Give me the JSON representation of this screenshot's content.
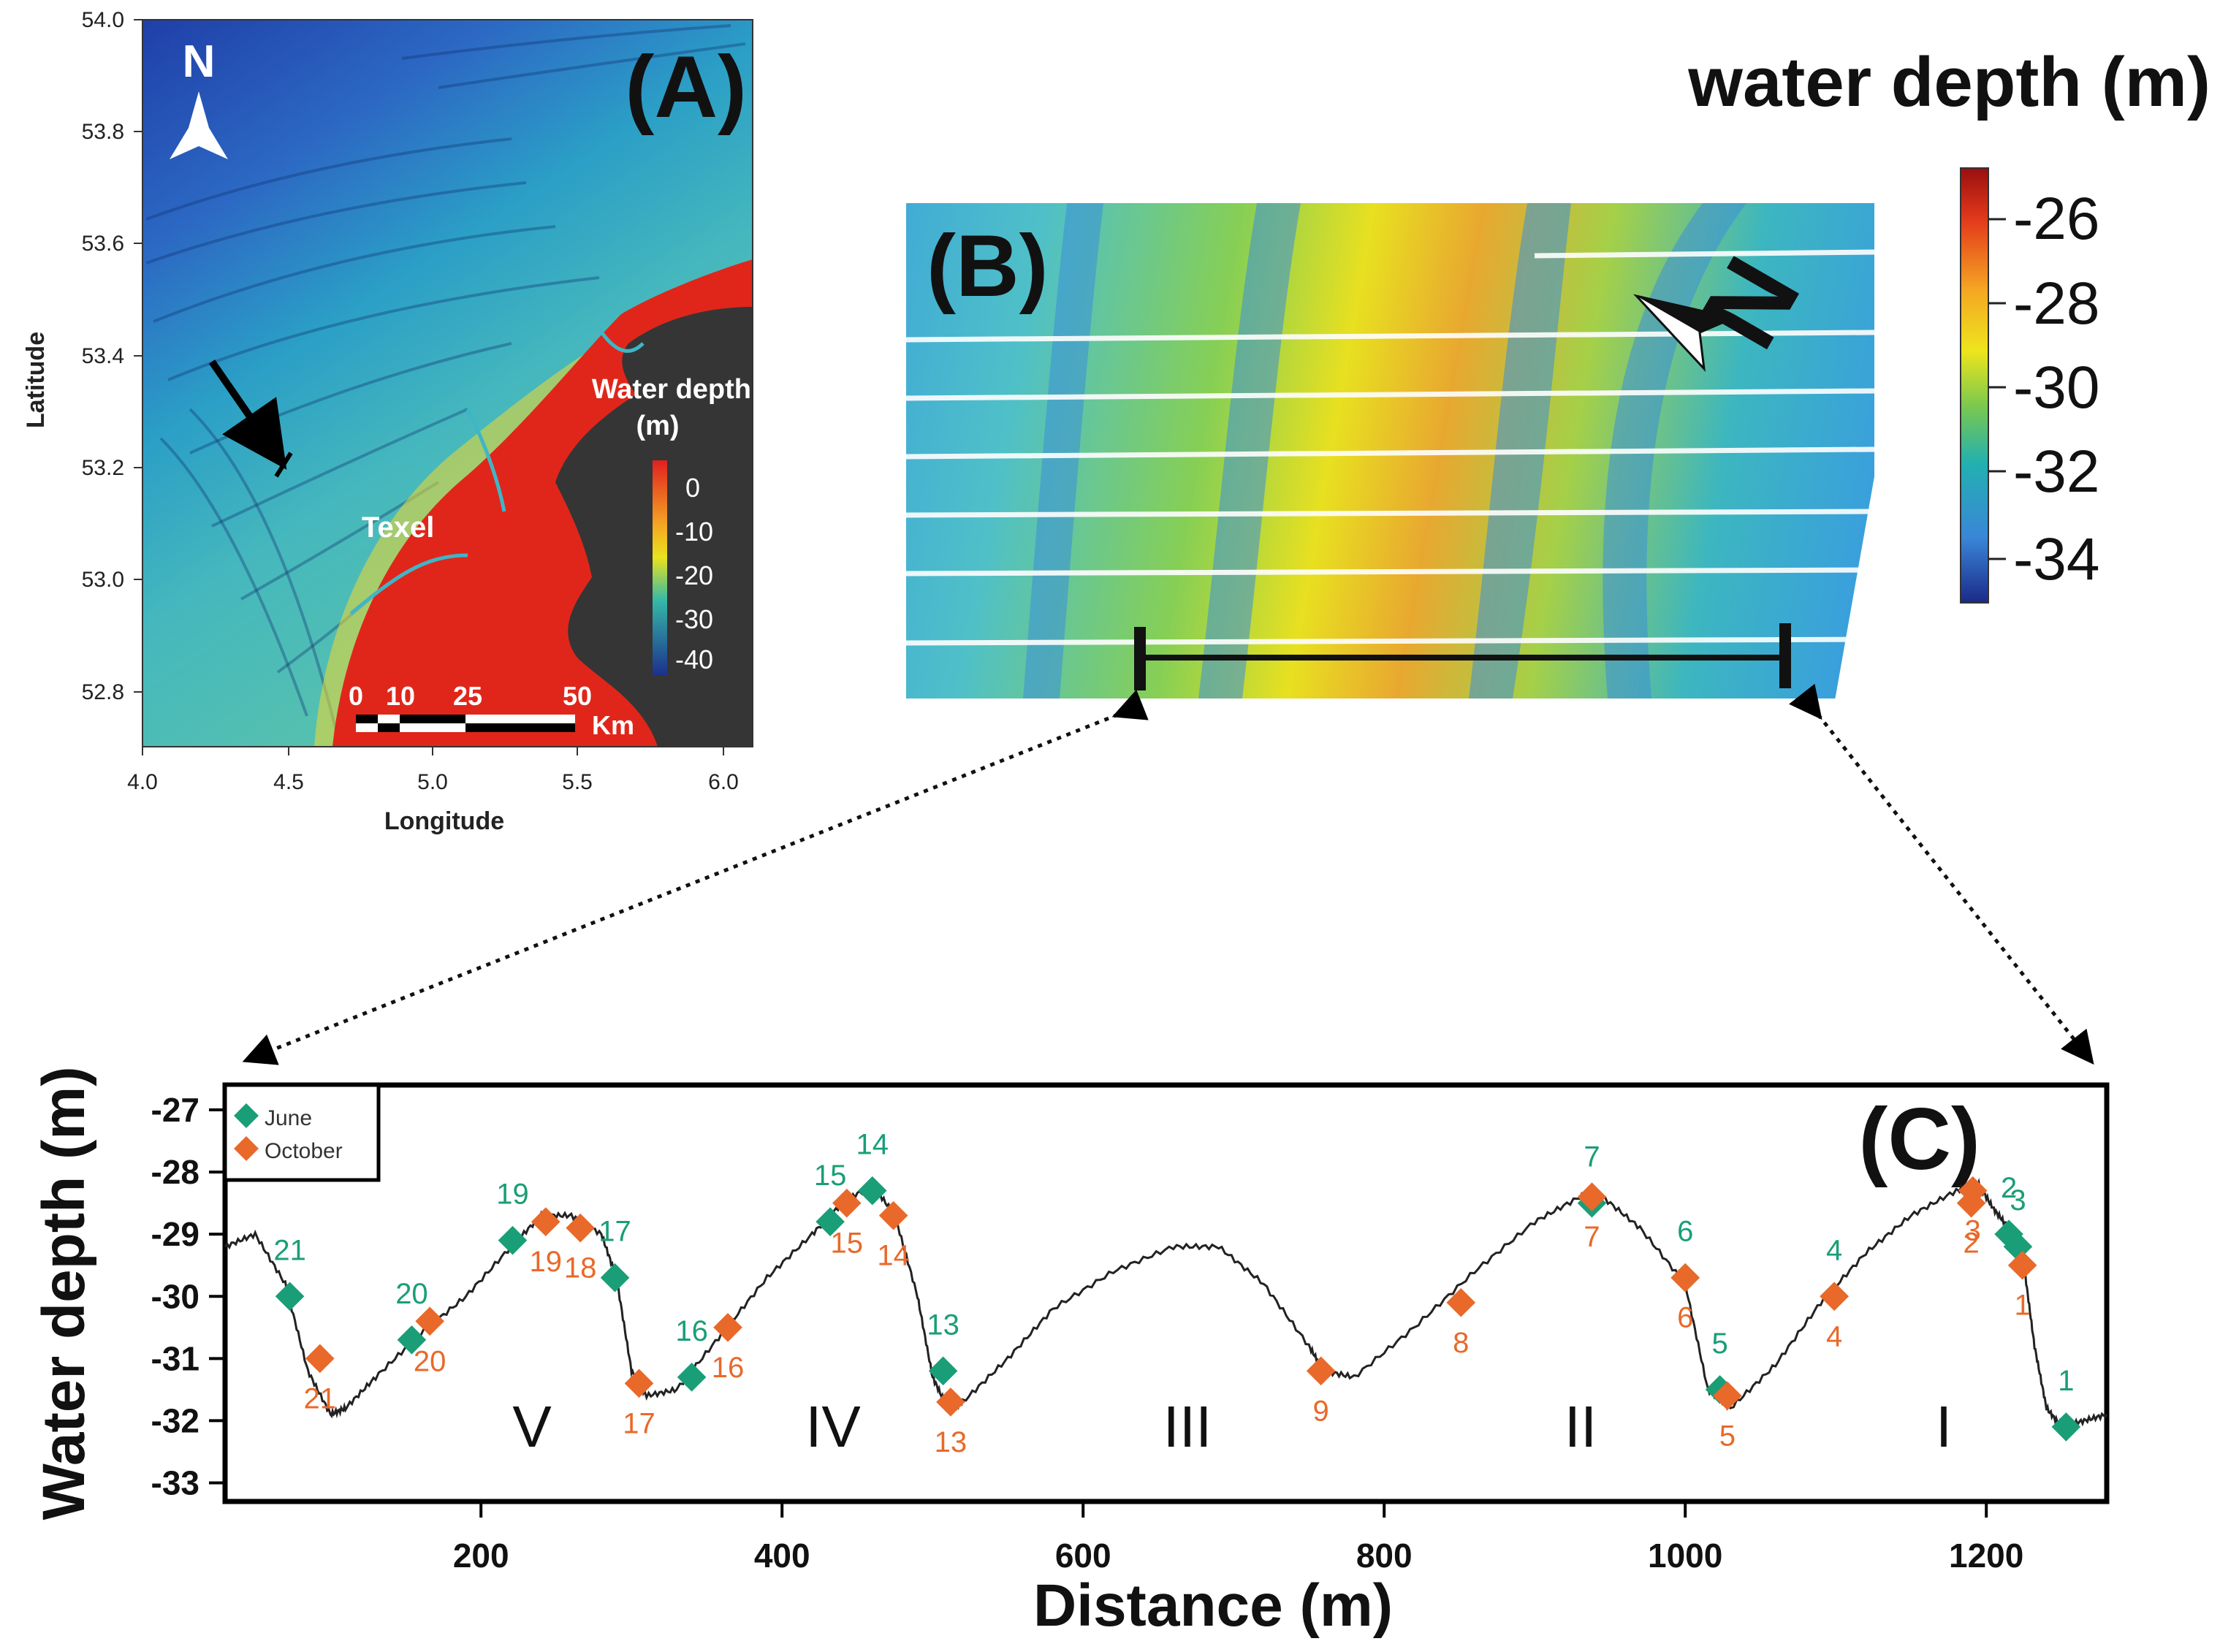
{
  "panelA": {
    "panel_label": "(A)",
    "north_label": "N",
    "place_label": "Texel",
    "legend_title_1": "Water depth",
    "legend_title_2": "(m)",
    "legend_ticks": [
      "0",
      "-10",
      "-20",
      "-30",
      "-40"
    ],
    "scale_ticks": [
      "0",
      "10",
      "25",
      "50"
    ],
    "scale_unit": "Km",
    "xlabel": "Longitude",
    "ylabel": "Latitude",
    "x_ticks": [
      "4.0",
      "4.5",
      "5.0",
      "5.5",
      "6.0"
    ],
    "y_ticks": [
      "54.0",
      "53.8",
      "53.6",
      "53.4",
      "53.2",
      "53.0",
      "52.8"
    ],
    "colors": {
      "deep": "#1a3e9c",
      "mid": "#3fb5c8",
      "shallow": "#e0261a",
      "land": "#353535"
    }
  },
  "panelB": {
    "panel_label": "(B)",
    "north_label": "N"
  },
  "colorbar": {
    "title": "water depth (m)",
    "ticks": [
      "-26",
      "-28",
      "-30",
      "-32",
      "-34"
    ],
    "colors": [
      "#a01010",
      "#e8351a",
      "#f5a623",
      "#f2e51a",
      "#7ec850",
      "#2ab0a8",
      "#3a8fd8",
      "#1c2f8c"
    ]
  },
  "panelC": {
    "panel_label": "(C)",
    "legend": [
      {
        "label": "June",
        "color": "#1a9e77"
      },
      {
        "label": "October",
        "color": "#e8692a"
      }
    ],
    "regions": [
      "V",
      "IV",
      "III",
      "II",
      "I"
    ]
  },
  "chart_data": {
    "type": "line",
    "title": "",
    "xlabel": "Distance (m)",
    "ylabel": "Water depth (m)",
    "xlim": [
      30,
      1280
    ],
    "ylim": [
      -33.3,
      -26.6
    ],
    "x_ticks": [
      200,
      400,
      600,
      800,
      1000,
      1200
    ],
    "y_ticks": [
      -27,
      -28,
      -29,
      -30,
      -31,
      -32,
      -33
    ],
    "profile": {
      "x": [
        30,
        50,
        70,
        85,
        100,
        110,
        130,
        160,
        190,
        220,
        240,
        260,
        280,
        290,
        300,
        310,
        330,
        360,
        390,
        420,
        440,
        460,
        475,
        490,
        500,
        510,
        520,
        550,
        580,
        620,
        660,
        690,
        720,
        750,
        760,
        780,
        820,
        860,
        900,
        930,
        945,
        970,
        1000,
        1015,
        1030,
        1060,
        1090,
        1120,
        1150,
        1180,
        1195,
        1205,
        1215,
        1225,
        1232,
        1240,
        1250,
        1265,
        1280
      ],
      "y": [
        -29.2,
        -29.0,
        -29.8,
        -31.2,
        -31.9,
        -31.8,
        -31.3,
        -30.6,
        -30.0,
        -29.2,
        -28.7,
        -28.7,
        -29.0,
        -29.7,
        -31.2,
        -31.6,
        -31.5,
        -30.6,
        -29.7,
        -29.0,
        -28.5,
        -28.2,
        -28.7,
        -30.0,
        -31.3,
        -31.8,
        -31.7,
        -31.0,
        -30.2,
        -29.6,
        -29.2,
        -29.2,
        -29.8,
        -30.8,
        -31.2,
        -31.3,
        -30.5,
        -29.6,
        -28.8,
        -28.4,
        -28.4,
        -28.9,
        -29.8,
        -31.5,
        -31.8,
        -31.1,
        -30.1,
        -29.3,
        -28.7,
        -28.3,
        -28.2,
        -28.6,
        -28.9,
        -29.5,
        -30.8,
        -31.8,
        -32.1,
        -32.0,
        -31.9
      ]
    },
    "series": [
      {
        "name": "June",
        "points": [
          {
            "id": "1",
            "x": 1253,
            "y": -32.1
          },
          {
            "id": "2",
            "x": 1215,
            "y": -29.0
          },
          {
            "id": "3",
            "x": 1221,
            "y": -29.2
          },
          {
            "id": "4",
            "x": 1099,
            "y": -30.0
          },
          {
            "id": "5",
            "x": 1023,
            "y": -31.5
          },
          {
            "id": "6",
            "x": 1000,
            "y": -29.7
          },
          {
            "id": "7",
            "x": 938,
            "y": -28.5
          },
          {
            "id": "13",
            "x": 507,
            "y": -31.2
          },
          {
            "id": "14",
            "x": 460,
            "y": -28.3
          },
          {
            "id": "15",
            "x": 432,
            "y": -28.8
          },
          {
            "id": "16",
            "x": 340,
            "y": -31.3
          },
          {
            "id": "17",
            "x": 289,
            "y": -29.7
          },
          {
            "id": "19",
            "x": 221,
            "y": -29.1
          },
          {
            "id": "20",
            "x": 154,
            "y": -30.7
          },
          {
            "id": "21",
            "x": 73,
            "y": -30.0
          }
        ]
      },
      {
        "name": "October",
        "points": [
          {
            "id": "1",
            "x": 1224,
            "y": -29.5
          },
          {
            "id": "2",
            "x": 1190,
            "y": -28.5
          },
          {
            "id": "3",
            "x": 1191,
            "y": -28.3
          },
          {
            "id": "4",
            "x": 1099,
            "y": -30.0
          },
          {
            "id": "5",
            "x": 1028,
            "y": -31.6
          },
          {
            "id": "6",
            "x": 1000,
            "y": -29.7
          },
          {
            "id": "7",
            "x": 938,
            "y": -28.4
          },
          {
            "id": "8",
            "x": 851,
            "y": -30.1
          },
          {
            "id": "9",
            "x": 758,
            "y": -31.2
          },
          {
            "id": "13",
            "x": 512,
            "y": -31.7
          },
          {
            "id": "14",
            "x": 474,
            "y": -28.7
          },
          {
            "id": "15",
            "x": 443,
            "y": -28.5
          },
          {
            "id": "16",
            "x": 364,
            "y": -30.5
          },
          {
            "id": "17",
            "x": 305,
            "y": -31.4
          },
          {
            "id": "18",
            "x": 266,
            "y": -28.9
          },
          {
            "id": "19",
            "x": 243,
            "y": -28.8
          },
          {
            "id": "20",
            "x": 166,
            "y": -30.4
          },
          {
            "id": "21",
            "x": 93,
            "y": -31.0
          }
        ]
      }
    ]
  }
}
